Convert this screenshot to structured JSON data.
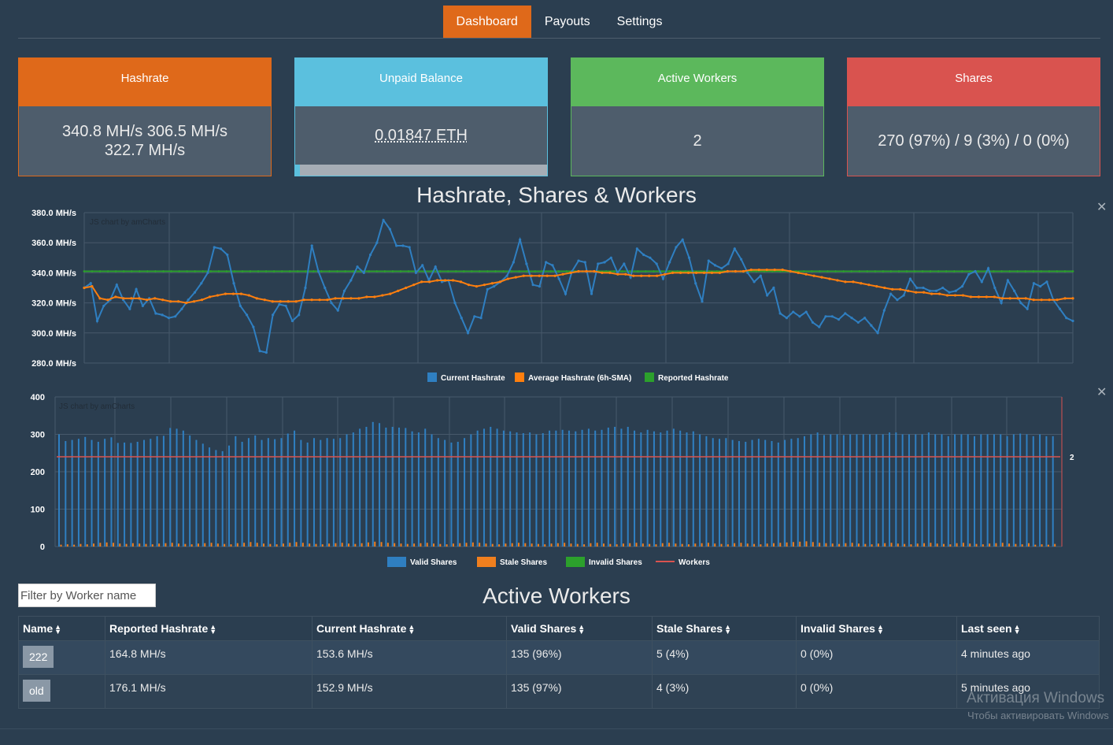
{
  "nav": {
    "tabs": [
      {
        "label": "Dashboard",
        "active": true
      },
      {
        "label": "Payouts",
        "active": false
      },
      {
        "label": "Settings",
        "active": false
      }
    ]
  },
  "cards": {
    "hashrate": {
      "title": "Hashrate",
      "line1": "340.8 MH/s 306.5 MH/s",
      "line2": "322.7 MH/s"
    },
    "balance": {
      "title": "Unpaid Balance",
      "value": "0.01847 ETH",
      "progress": 0.02
    },
    "workers": {
      "title": "Active Workers",
      "value": "2"
    },
    "shares": {
      "title": "Shares",
      "value": "270 (97%) / 9 (3%) / 0 (0%)"
    }
  },
  "colors": {
    "orange": "#df691a",
    "blue": "#5bc0de",
    "green": "#5cb85c",
    "red": "#d9534f",
    "current": "#2f7fc1",
    "average": "#ff7f0e",
    "reported": "#2ca02c",
    "stale": "#f07f1e",
    "workers": "#d9534f"
  },
  "titles": {
    "chart_section": "Hashrate, Shares & Workers",
    "workers_section": "Active Workers"
  },
  "chart_data": [
    {
      "type": "line",
      "watermark": "JS chart by amCharts",
      "ylabels": [
        "380.0 MH/s",
        "360.0 MH/s",
        "340.0 MH/s",
        "320.0 MH/s",
        "300.0 MH/s",
        "280.0 MH/s"
      ],
      "ylim": [
        280,
        380
      ],
      "grid": true,
      "legend_position": "bottom",
      "series": [
        {
          "name": "Current Hashrate",
          "values": [
            330,
            333,
            308,
            318,
            322,
            332,
            322,
            316,
            329,
            318,
            323,
            313,
            312,
            310,
            311,
            316,
            322,
            327,
            333,
            340,
            357,
            356,
            352,
            333,
            318,
            312,
            304,
            288,
            287,
            312,
            319,
            318,
            308,
            312,
            330,
            358,
            341,
            330,
            320,
            315,
            328,
            335,
            344,
            340,
            352,
            360,
            375,
            369,
            358,
            358,
            357,
            340,
            345,
            335,
            344,
            334,
            335,
            320,
            310,
            300,
            311,
            310,
            329,
            331,
            334,
            338,
            347,
            362,
            346,
            332,
            331,
            347,
            345,
            336,
            326,
            341,
            348,
            347,
            326,
            346,
            347,
            350,
            340,
            346,
            337,
            356,
            352,
            350,
            346,
            336,
            347,
            357,
            362,
            350,
            333,
            321,
            348,
            345,
            343,
            346,
            356,
            349,
            340,
            334,
            338,
            325,
            330,
            313,
            310,
            314,
            311,
            314,
            307,
            304,
            311,
            311,
            309,
            313,
            310,
            307,
            310,
            305,
            300,
            315,
            326,
            322,
            325,
            336,
            330,
            330,
            328,
            328,
            330,
            327,
            328,
            331,
            339,
            341,
            334,
            343,
            330,
            320,
            335,
            328,
            320,
            316,
            333,
            331,
            334,
            322,
            316,
            310,
            308
          ]
        },
        {
          "name": "Average Hashrate (6h-SMA)",
          "values": [
            330,
            331,
            323,
            322,
            324,
            323,
            323,
            323,
            322,
            323,
            322,
            321,
            321,
            320,
            321,
            322,
            324,
            325,
            326,
            326,
            326,
            325,
            323,
            322,
            321,
            321,
            321,
            321,
            322,
            322,
            322,
            322,
            323,
            323,
            323,
            323,
            324,
            324,
            325,
            326,
            328,
            330,
            332,
            334,
            334,
            335,
            335,
            335,
            334,
            332,
            331,
            332,
            333,
            334,
            336,
            337,
            338,
            338,
            338,
            338,
            338,
            339,
            340,
            341,
            341,
            341,
            340,
            340,
            339,
            339,
            338,
            338,
            338,
            338,
            339,
            340,
            340,
            340,
            340,
            340,
            340,
            340,
            341,
            341,
            341,
            342,
            342,
            342,
            342,
            342,
            341,
            340,
            339,
            338,
            337,
            336,
            335,
            334,
            334,
            333,
            332,
            331,
            330,
            329,
            329,
            328,
            327,
            327,
            326,
            326,
            325,
            325,
            325,
            324,
            324,
            324,
            324,
            323,
            323,
            323,
            323,
            322,
            322,
            322,
            322,
            323,
            323
          ]
        },
        {
          "name": "Reported Hashrate",
          "values": [
            341,
            341
          ]
        }
      ]
    },
    {
      "type": "bar",
      "watermark": "JS chart by amCharts",
      "ylabels": [
        "400",
        "300",
        "200",
        "100",
        "0"
      ],
      "ylim": [
        0,
        400
      ],
      "grid": true,
      "legend_position": "bottom",
      "right_label": "2",
      "series": [
        {
          "name": "Valid Shares",
          "values": [
            300,
            282,
            285,
            288,
            293,
            285,
            280,
            288,
            292,
            277,
            278,
            277,
            280,
            285,
            288,
            295,
            296,
            317,
            315,
            310,
            297,
            285,
            275,
            265,
            258,
            255,
            270,
            295,
            280,
            290,
            297,
            285,
            290,
            287,
            290,
            302,
            310,
            285,
            278,
            290,
            285,
            290,
            288,
            290,
            300,
            305,
            315,
            320,
            333,
            330,
            318,
            320,
            318,
            317,
            308,
            305,
            315,
            300,
            290,
            285,
            278,
            280,
            290,
            300,
            310,
            315,
            320,
            315,
            310,
            308,
            305,
            303,
            305,
            300,
            303,
            310,
            310,
            312,
            310,
            308,
            312,
            315,
            310,
            312,
            318,
            320,
            315,
            320,
            310,
            305,
            312,
            308,
            305,
            310,
            315,
            310,
            305,
            308,
            300,
            295,
            290,
            288,
            290,
            285,
            282,
            280,
            285,
            288,
            285,
            282,
            278,
            285,
            288,
            290,
            295,
            300,
            305,
            298,
            300,
            300,
            298,
            300,
            300,
            300,
            300,
            300,
            300,
            305,
            305,
            300,
            300,
            300,
            300,
            305,
            300,
            300,
            295,
            300,
            300,
            300,
            295,
            300,
            300,
            300,
            300,
            295,
            300,
            302,
            300,
            295,
            300,
            295,
            295
          ]
        },
        {
          "name": "Stale Shares",
          "values": [
            5,
            6,
            5,
            7,
            6,
            8,
            10,
            11,
            10,
            8,
            7,
            9,
            8,
            7,
            6,
            8,
            9,
            10,
            8,
            7,
            6,
            8,
            9,
            10,
            8,
            7,
            6,
            9,
            10,
            12,
            10,
            8,
            7,
            6,
            8,
            10,
            12,
            10,
            8,
            7,
            6,
            8,
            9,
            10,
            8,
            7,
            9,
            11,
            13,
            12,
            10,
            9,
            8,
            7,
            8,
            9,
            10,
            8,
            7,
            6,
            8,
            9,
            10,
            11,
            10,
            8,
            7,
            6,
            8,
            9,
            10,
            9,
            8,
            7,
            6,
            8,
            9,
            10,
            8,
            7,
            6,
            9,
            10,
            8,
            7,
            6,
            8,
            9,
            10,
            8,
            7,
            6,
            9,
            10,
            8,
            7,
            6,
            8,
            9,
            10,
            8,
            7,
            6,
            9,
            10,
            8,
            7,
            6,
            8,
            9,
            10,
            11,
            12,
            13,
            14,
            12,
            10,
            9,
            8,
            7,
            9,
            10,
            8,
            7,
            6,
            8,
            9,
            10,
            8,
            7,
            6,
            8,
            9,
            10,
            8,
            7,
            6,
            9,
            10,
            8,
            7,
            6,
            8,
            9,
            10,
            8,
            7,
            6,
            9
          ]
        },
        {
          "name": "Invalid Shares",
          "values": []
        },
        {
          "name": "Workers",
          "values": [
            2,
            2
          ]
        }
      ]
    }
  ],
  "filter": {
    "placeholder": "Filter by Worker name"
  },
  "table": {
    "headers": [
      "Name",
      "Reported Hashrate",
      "Current Hashrate",
      "Valid Shares",
      "Stale Shares",
      "Invalid Shares",
      "Last seen"
    ],
    "rows": [
      {
        "name": "222",
        "reported": "164.8 MH/s",
        "current": "153.6 MH/s",
        "valid": "135 (96%)",
        "stale": "5 (4%)",
        "invalid": "0 (0%)",
        "last_seen": "4 minutes ago"
      },
      {
        "name": "old",
        "reported": "176.1 MH/s",
        "current": "152.9 MH/s",
        "valid": "135 (97%)",
        "stale": "4 (3%)",
        "invalid": "0 (0%)",
        "last_seen": "5 minutes ago"
      }
    ]
  },
  "watermark": {
    "line1": "Активация Windows",
    "line2": "Чтобы активировать Windows"
  }
}
